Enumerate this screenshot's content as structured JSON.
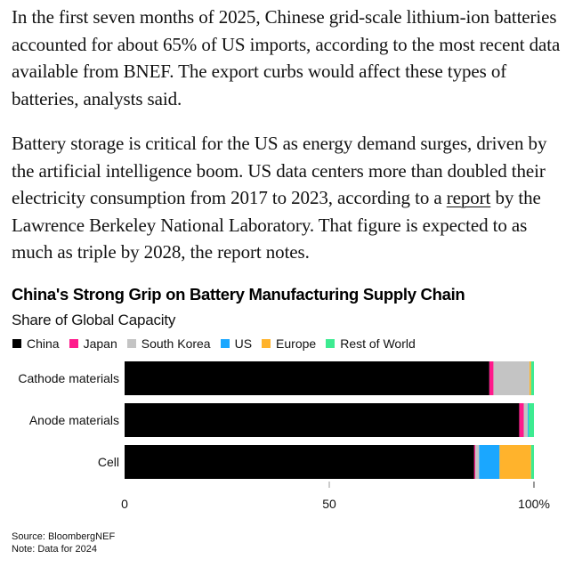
{
  "article": {
    "paragraph_1": "In the first seven months of 2025, Chinese grid-scale lithium-ion batteries accounted for about 65% of US imports, according to the most recent data available from BNEF. The export curbs would affect these types of batteries, analysts said.",
    "paragraph_2_before_link": "Battery storage is critical for the US as energy demand surges, driven by the artificial intelligence boom. US data centers more than doubled their electricity consumption from 2017 to 2023, according to a ",
    "paragraph_2_link": "report",
    "paragraph_2_after_link": " by the Lawrence Berkeley National Laboratory. That figure is expected to as much as triple by 2028, the report notes."
  },
  "chart_data": {
    "type": "bar",
    "orientation": "horizontal",
    "stacked": true,
    "title": "China's Strong Grip on Battery Manufacturing Supply Chain",
    "subtitle": "Share of Global Capacity",
    "xlabel": "",
    "ylabel": "",
    "xlim": [
      0,
      100
    ],
    "x_ticks": [
      {
        "value": 0,
        "label": "0"
      },
      {
        "value": 50,
        "label": "50"
      },
      {
        "value": 100,
        "label": "100%"
      }
    ],
    "grid": false,
    "legend_position": "top-left",
    "categories": [
      "Cathode materials",
      "Anode materials",
      "Cell"
    ],
    "series": [
      {
        "name": "China",
        "color": "#000000",
        "values": [
          89.1,
          96.4,
          85.4
        ]
      },
      {
        "name": "Japan",
        "color": "#ff1a8c",
        "values": [
          1.0,
          1.1,
          0.3
        ]
      },
      {
        "name": "South Korea",
        "color": "#c4c4c4",
        "values": [
          8.8,
          1.0,
          0.9
        ]
      },
      {
        "name": "US",
        "color": "#1aa7ff",
        "values": [
          0.0,
          0.2,
          5.0
        ]
      },
      {
        "name": "Europe",
        "color": "#ffb32c",
        "values": [
          0.4,
          0.0,
          7.7
        ]
      },
      {
        "name": "Rest of World",
        "color": "#3deb91",
        "values": [
          0.7,
          1.3,
          0.7
        ]
      }
    ],
    "source": "Source: BloombergNEF",
    "note": "Note: Data for 2024"
  }
}
